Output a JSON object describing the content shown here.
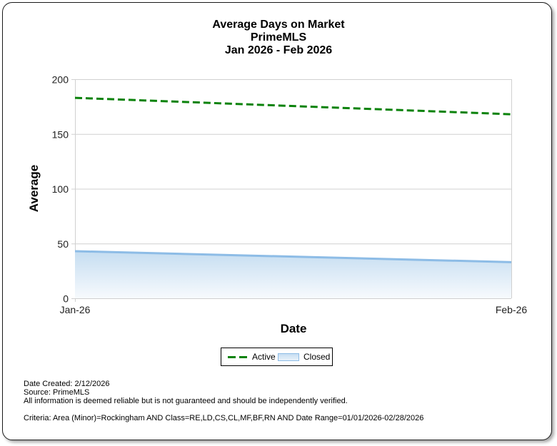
{
  "chart_data": {
    "type": "line",
    "title": "Average Days on Market",
    "subtitle": "PrimeMLS",
    "date_range": "Jan 2026 - Feb 2026",
    "xlabel": "Date",
    "ylabel": "Average",
    "categories": [
      "Jan-26",
      "Feb-26"
    ],
    "ylim": [
      0,
      200
    ],
    "yticks": [
      0,
      50,
      100,
      150,
      200
    ],
    "grid": true,
    "legend_position": "bottom",
    "series": [
      {
        "name": "Active",
        "style": "dashed-line",
        "color": "#0a820a",
        "values": [
          183,
          168
        ]
      },
      {
        "name": "Closed",
        "style": "area",
        "color": "#8dbce6",
        "values": [
          43,
          33
        ]
      }
    ]
  },
  "header": {
    "title": "Average Days on Market",
    "subtitle": "PrimeMLS",
    "range": "Jan 2026 - Feb 2026"
  },
  "axes": {
    "x_title": "Date",
    "y_title": "Average",
    "y_ticks": [
      "200",
      "150",
      "100",
      "50",
      "0"
    ],
    "x_ticks": [
      "Jan-26",
      "Feb-26"
    ]
  },
  "legend": {
    "items": [
      {
        "label": "Active"
      },
      {
        "label": "Closed"
      }
    ]
  },
  "footer": {
    "date_created": "Date Created: 2/12/2026",
    "source": "Source: PrimeMLS",
    "disclaimer": "All information is deemed reliable but is not guaranteed and should be independently verified.",
    "criteria": "Criteria: Area (Minor)=Rockingham AND Class=RE,LD,CS,CL,MF,BF,RN AND Date Range=01/01/2026-02/28/2026"
  }
}
